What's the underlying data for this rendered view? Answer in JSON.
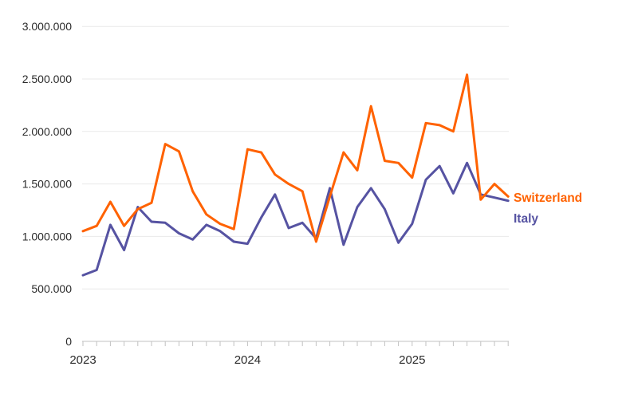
{
  "chart_data": {
    "type": "line",
    "x": [
      "2023-01",
      "2023-02",
      "2023-03",
      "2023-04",
      "2023-05",
      "2023-06",
      "2023-07",
      "2023-08",
      "2023-09",
      "2023-10",
      "2023-11",
      "2023-12",
      "2024-01",
      "2024-02",
      "2024-03",
      "2024-04",
      "2024-05",
      "2024-06",
      "2024-07",
      "2024-08",
      "2024-09",
      "2024-10",
      "2024-11",
      "2024-12",
      "2025-01",
      "2025-02",
      "2025-03",
      "2025-04",
      "2025-05",
      "2025-06",
      "2025-07",
      "2025-08"
    ],
    "series": [
      {
        "name": "Switzerland",
        "color": "#FF6200",
        "values": [
          1050000,
          1100000,
          1330000,
          1100000,
          1260000,
          1320000,
          1880000,
          1810000,
          1430000,
          1210000,
          1120000,
          1070000,
          1830000,
          1800000,
          1590000,
          1500000,
          1430000,
          950000,
          1380000,
          1800000,
          1630000,
          2240000,
          1720000,
          1700000,
          1560000,
          2080000,
          2060000,
          2000000,
          2540000,
          1350000,
          1500000,
          1380000
        ]
      },
      {
        "name": "Italy",
        "color": "#5653A2",
        "values": [
          630000,
          680000,
          1110000,
          870000,
          1280000,
          1140000,
          1130000,
          1030000,
          970000,
          1110000,
          1050000,
          950000,
          930000,
          1180000,
          1400000,
          1080000,
          1130000,
          980000,
          1460000,
          920000,
          1280000,
          1460000,
          1260000,
          940000,
          1120000,
          1540000,
          1670000,
          1410000,
          1700000,
          1400000,
          1370000,
          1340000
        ]
      }
    ],
    "ylim": [
      0,
      3000000
    ],
    "y_tick_step": 500000,
    "y_tick_labels": [
      "0",
      "500.000",
      "1.000.000",
      "1.500.000",
      "2.000.000",
      "2.500.000",
      "3.000.000"
    ],
    "x_year_labels": [
      {
        "label": "2023",
        "month_index": 0
      },
      {
        "label": "2024",
        "month_index": 12
      },
      {
        "label": "2025",
        "month_index": 24
      }
    ],
    "grid": "horizontal",
    "legend_position": "right-of-line-end"
  }
}
